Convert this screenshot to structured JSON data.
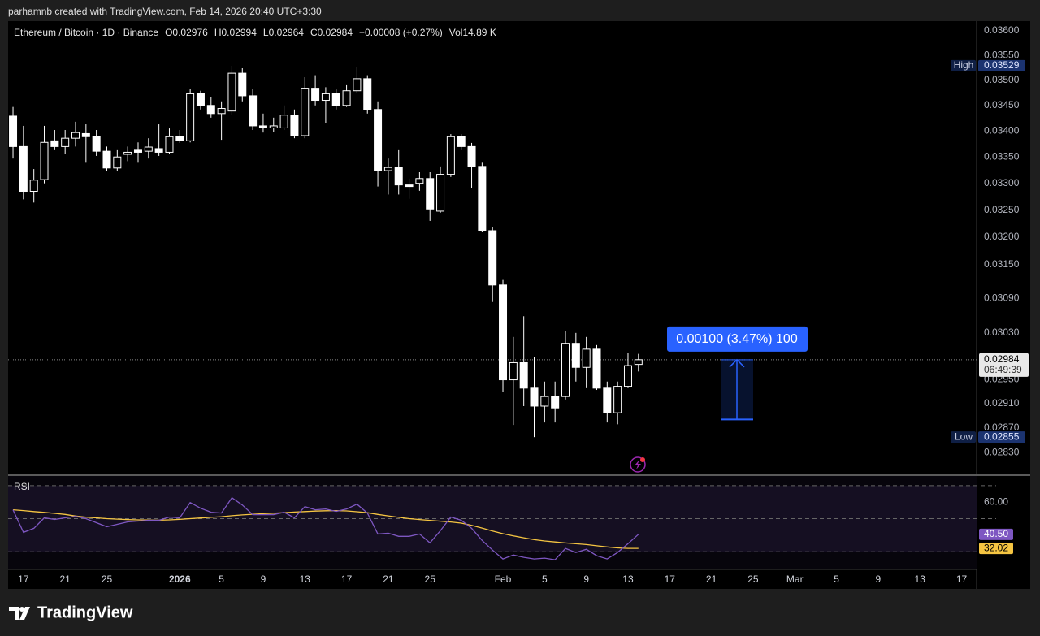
{
  "header": "parhamnb created with TradingView.com, Feb 14, 2026 20:40 UTC+3:30",
  "brand": "TradingView",
  "legend": {
    "o": "O",
    "h": "H",
    "l": "L",
    "c": "C",
    "change": "+0.00008 (+0.27%)",
    "vol_label": "Vol",
    "volume": "14.89 K"
  },
  "chart_data": {
    "type": "candlestick",
    "title": "Ethereum / Bitcoin · 1D · Binance",
    "log_scale": true,
    "colors": {
      "up": "#000000",
      "down": "#ffffff",
      "wick": "#ffffff"
    },
    "open": [
      0.03429,
      0.0337,
      0.03285,
      0.03307,
      0.03381,
      0.0337,
      0.03386,
      0.03395,
      0.03389,
      0.03361,
      0.03329,
      0.03355,
      0.03363,
      0.03361,
      0.03366,
      0.03359,
      0.03389,
      0.03381,
      0.03473,
      0.0345,
      0.03434,
      0.03439,
      0.03514,
      0.03469,
      0.0341,
      0.03406,
      0.03406,
      0.03431,
      0.03391,
      0.03484,
      0.0346,
      0.03473,
      0.0345,
      0.03479,
      0.03503,
      0.03442,
      0.03324,
      0.0333,
      0.03297,
      0.033,
      0.03309,
      0.03248,
      0.03317,
      0.03389,
      0.0337,
      0.03332,
      0.03212,
      0.03114,
      0.0295,
      0.02979,
      0.02936,
      0.02906,
      0.02922,
      0.02922,
      0.03012,
      0.02971,
      0.03002,
      0.02936,
      0.02895,
      0.02939,
      0.02976
    ],
    "high": [
      0.03447,
      0.0341,
      0.03327,
      0.0341,
      0.03402,
      0.03402,
      0.03418,
      0.03413,
      0.03402,
      0.0337,
      0.03363,
      0.0337,
      0.03378,
      0.03386,
      0.03413,
      0.03405,
      0.03402,
      0.03482,
      0.03479,
      0.03466,
      0.03458,
      0.03529,
      0.03524,
      0.03482,
      0.03434,
      0.03426,
      0.0345,
      0.03442,
      0.03506,
      0.0351,
      0.03486,
      0.03482,
      0.0349,
      0.03527,
      0.0351,
      0.03458,
      0.03347,
      0.03363,
      0.03309,
      0.03321,
      0.03321,
      0.03332,
      0.03394,
      0.03394,
      0.03377,
      0.03339,
      0.03218,
      0.03123,
      0.03023,
      0.03059,
      0.02988,
      0.02947,
      0.02947,
      0.03033,
      0.0303,
      0.03023,
      0.03009,
      0.02947,
      0.02947,
      0.02995,
      0.02994
    ],
    "low": [
      0.03347,
      0.0327,
      0.03264,
      0.033,
      0.03363,
      0.03355,
      0.0337,
      0.03339,
      0.03352,
      0.03324,
      0.03324,
      0.03342,
      0.03339,
      0.03347,
      0.03352,
      0.03355,
      0.03377,
      0.03378,
      0.03442,
      0.03426,
      0.03383,
      0.03431,
      0.03458,
      0.03402,
      0.03397,
      0.03398,
      0.03402,
      0.03386,
      0.03386,
      0.0345,
      0.03415,
      0.03442,
      0.03447,
      0.03474,
      0.03434,
      0.03294,
      0.03279,
      0.03279,
      0.03271,
      0.03286,
      0.0323,
      0.03245,
      0.03312,
      0.03363,
      0.03291,
      0.03209,
      0.03084,
      0.02929,
      0.02875,
      0.02906,
      0.02855,
      0.02879,
      0.02879,
      0.02917,
      0.02947,
      0.02936,
      0.02933,
      0.02879,
      0.02876,
      0.02936,
      0.02964
    ],
    "close": [
      0.0337,
      0.03285,
      0.03306,
      0.03378,
      0.0337,
      0.03386,
      0.03397,
      0.03389,
      0.03361,
      0.03329,
      0.0335,
      0.03359,
      0.03359,
      0.03369,
      0.03359,
      0.03389,
      0.03381,
      0.03473,
      0.0345,
      0.03434,
      0.03444,
      0.03514,
      0.03469,
      0.0341,
      0.03406,
      0.0341,
      0.03431,
      0.03391,
      0.03484,
      0.0346,
      0.03473,
      0.0345,
      0.03479,
      0.03503,
      0.03442,
      0.03324,
      0.0333,
      0.03297,
      0.03294,
      0.03309,
      0.03252,
      0.03317,
      0.03389,
      0.0337,
      0.03332,
      0.03212,
      0.03114,
      0.0295,
      0.02979,
      0.02936,
      0.02906,
      0.02922,
      0.02903,
      0.03012,
      0.02971,
      0.03002,
      0.02936,
      0.02895,
      0.02939,
      0.02974,
      0.02984
    ],
    "ylim": [
      0.02795,
      0.0362
    ],
    "yticks": [
      {
        "value": 0.036,
        "label": "0.03600"
      },
      {
        "value": 0.0355,
        "label": "0.03550"
      },
      {
        "value": 0.035,
        "label": "0.03500"
      },
      {
        "value": 0.0345,
        "label": "0.03450"
      },
      {
        "value": 0.034,
        "label": "0.03400"
      },
      {
        "value": 0.0335,
        "label": "0.03350"
      },
      {
        "value": 0.033,
        "label": "0.03300"
      },
      {
        "value": 0.0325,
        "label": "0.03250"
      },
      {
        "value": 0.032,
        "label": "0.03200"
      },
      {
        "value": 0.0315,
        "label": "0.03150"
      },
      {
        "value": 0.0309,
        "label": "0.03090"
      },
      {
        "value": 0.0303,
        "label": "0.03030"
      },
      {
        "value": 0.0295,
        "label": "0.02950"
      },
      {
        "value": 0.0291,
        "label": "0.02910"
      },
      {
        "value": 0.0287,
        "label": "0.02870"
      },
      {
        "value": 0.0283,
        "label": "0.02830"
      }
    ],
    "xlim": [
      -0.47,
      92.44
    ],
    "xticks": [
      {
        "value": 1,
        "label": "17"
      },
      {
        "value": 5,
        "label": "21"
      },
      {
        "value": 9,
        "label": "25"
      },
      {
        "value": 16,
        "label": "2026"
      },
      {
        "value": 20,
        "label": "5"
      },
      {
        "value": 24,
        "label": "9"
      },
      {
        "value": 28,
        "label": "13"
      },
      {
        "value": 32,
        "label": "17"
      },
      {
        "value": 36,
        "label": "21"
      },
      {
        "value": 40,
        "label": "25"
      },
      {
        "value": 47,
        "label": "Feb"
      },
      {
        "value": 51,
        "label": "5"
      },
      {
        "value": 55,
        "label": "9"
      },
      {
        "value": 59,
        "label": "13"
      },
      {
        "value": 63,
        "label": "17"
      },
      {
        "value": 67,
        "label": "21"
      },
      {
        "value": 71,
        "label": "25"
      },
      {
        "value": 75,
        "label": "Mar"
      },
      {
        "value": 79,
        "label": "5"
      },
      {
        "value": 83,
        "label": "9"
      },
      {
        "value": 87,
        "label": "13"
      },
      {
        "value": 91,
        "label": "17"
      }
    ],
    "high_marker": {
      "label": "High",
      "value": 0.03529
    },
    "low_marker": {
      "label": "Low",
      "value": 0.02855
    },
    "countdown": "06:49:39",
    "measure": {
      "label": "0.00100 (3.47%) 100",
      "from": 0.02884,
      "to": 0.02984,
      "color": "#2962ff"
    },
    "rsi": {
      "title": "RSI",
      "ylim": [
        19.76,
        75.85
      ],
      "yticks": [
        {
          "value": 60,
          "label": "60.00"
        }
      ],
      "bands": [
        70,
        50,
        30
      ],
      "line": {
        "color": "#7e57c2",
        "value_label": "40.50",
        "values": [
          55.37,
          41.71,
          44.15,
          50.49,
          49.51,
          50.49,
          51.46,
          50.0,
          47.56,
          45.12,
          46.59,
          48.05,
          48.54,
          49.02,
          49.02,
          50.98,
          50.49,
          59.76,
          56.34,
          53.9,
          53.41,
          62.68,
          58.29,
          52.44,
          52.44,
          52.44,
          53.9,
          50.49,
          57.32,
          55.37,
          55.85,
          54.39,
          55.85,
          58.78,
          53.41,
          40.73,
          41.22,
          39.27,
          39.27,
          40.73,
          35.37,
          42.68,
          50.98,
          49.02,
          44.15,
          36.83,
          30.98,
          25.61,
          28.05,
          26.59,
          25.61,
          26.1,
          25.12,
          31.95,
          29.51,
          31.46,
          27.56,
          25.61,
          29.51,
          34.88,
          40.5
        ]
      },
      "ma": {
        "color": "#f5c542",
        "value_label": "32.02",
        "values": [
          55.4,
          54.9,
          54.3,
          53.8,
          53.2,
          52.6,
          51.6,
          50.9,
          50.5,
          50.0,
          49.7,
          49.5,
          49.3,
          49.2,
          49.1,
          49.3,
          49.6,
          50.0,
          50.4,
          50.8,
          51.2,
          51.8,
          52.3,
          52.7,
          53.0,
          53.3,
          53.6,
          54.0,
          54.3,
          54.6,
          54.8,
          54.9,
          54.7,
          54.2,
          53.6,
          52.6,
          51.7,
          50.8,
          50.0,
          49.5,
          49.0,
          48.5,
          48.0,
          47.3,
          46.0,
          44.3,
          42.5,
          40.9,
          39.6,
          38.4,
          37.3,
          36.5,
          35.9,
          35.3,
          34.8,
          34.3,
          33.6,
          32.9,
          32.3,
          32.0,
          32.02
        ]
      }
    }
  }
}
